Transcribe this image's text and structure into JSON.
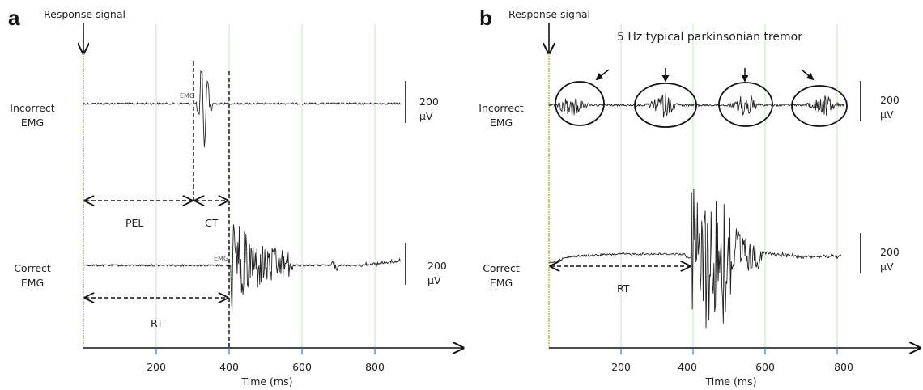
{
  "chart_data": [
    {
      "panel": "a",
      "type": "line",
      "response_label": "Response signal",
      "xlabel": "Time (ms)",
      "xticks": [
        200,
        400,
        600,
        800
      ],
      "xlim": [
        0,
        1050
      ],
      "grid": "vertical at 200, 400, 600, 800 (light green)",
      "rows": [
        {
          "label_line1": "Incorrect",
          "label_line2": "EMG",
          "scale_value": "200",
          "scale_unit": "µV",
          "emg_tag": "EMG",
          "burst_onset_ms": 310,
          "trace_end_ms": 870
        },
        {
          "label_line1": "Correct",
          "label_line2": "EMG",
          "scale_value": "200",
          "scale_unit": "µV",
          "emg_tag": "EMG",
          "burst_onset_ms": 400,
          "trace_end_ms": 870
        }
      ],
      "intervals": [
        {
          "label": "PEL",
          "start_ms": 0,
          "end_ms": 305
        },
        {
          "label": "CT",
          "start_ms": 305,
          "end_ms": 400
        },
        {
          "label": "RT",
          "start_ms": 0,
          "end_ms": 400
        }
      ],
      "dashed_markers_ms": [
        305,
        400
      ]
    },
    {
      "panel": "b",
      "type": "line",
      "response_label": "Response signal",
      "xlabel": "Time (ms)",
      "xticks": [
        200,
        400,
        600,
        800
      ],
      "xlim": [
        0,
        1050
      ],
      "grid": "vertical at 200, 400, 600, 800 (light green)",
      "annotation": "5 Hz typical parkinsonian tremor",
      "tremor_bursts_ms": [
        60,
        320,
        545,
        760
      ],
      "rows": [
        {
          "label_line1": "Incorrect",
          "label_line2": "EMG",
          "scale_value": "200",
          "scale_unit": "µV"
        },
        {
          "label_line1": "Correct",
          "label_line2": "EMG",
          "scale_value": "200",
          "scale_unit": "µV",
          "burst_onset_ms": 395,
          "trace_end_ms": 810
        }
      ],
      "intervals": [
        {
          "label": "RT",
          "start_ms": 0,
          "end_ms": 395
        }
      ]
    }
  ]
}
